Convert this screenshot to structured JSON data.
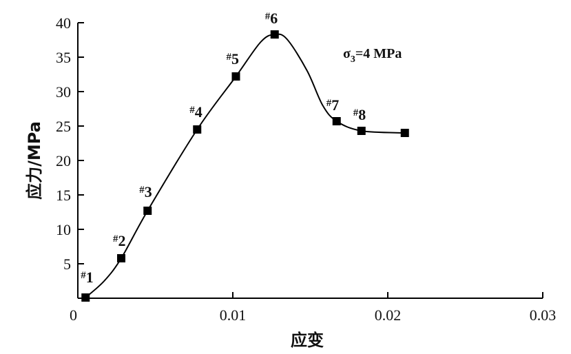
{
  "chart_data": {
    "type": "line",
    "title": "",
    "xlabel": "应变",
    "ylabel": "应力/MPa",
    "xlim": [
      0,
      0.03
    ],
    "ylim": [
      0,
      40
    ],
    "x_ticks": [
      0,
      0.01,
      0.02,
      0.03
    ],
    "x_tick_labels": [
      "0",
      "0.01",
      "0.02",
      "0.03"
    ],
    "y_ticks": [
      5,
      10,
      15,
      20,
      25,
      30,
      35,
      40
    ],
    "y_tick_labels": [
      "5",
      "10",
      "15",
      "20",
      "25",
      "30",
      "35",
      "40"
    ],
    "grid": false,
    "annotation": {
      "prefix": "σ",
      "subscript": "3",
      "suffix": "=4 MPa"
    },
    "series": [
      {
        "marker": "square",
        "color": "#000000",
        "points": [
          {
            "label": "1",
            "x": 0.0005,
            "y": 0.1
          },
          {
            "label": "2",
            "x": 0.0028,
            "y": 5.8
          },
          {
            "label": "3",
            "x": 0.0045,
            "y": 12.7
          },
          {
            "label": "4",
            "x": 0.0077,
            "y": 24.5
          },
          {
            "label": "5",
            "x": 0.0102,
            "y": 32.2
          },
          {
            "label": "6",
            "x": 0.0127,
            "y": 38.3
          },
          {
            "label": "7",
            "x": 0.0167,
            "y": 25.7
          },
          {
            "label": "8",
            "x": 0.0183,
            "y": 24.3
          },
          {
            "label": "",
            "x": 0.0211,
            "y": 24.0
          }
        ],
        "curve": [
          {
            "x": 0.0005,
            "y": 0.1
          },
          {
            "x": 0.0017,
            "y": 2.5
          },
          {
            "x": 0.0028,
            "y": 5.8
          },
          {
            "x": 0.0045,
            "y": 12.7
          },
          {
            "x": 0.0077,
            "y": 24.5
          },
          {
            "x": 0.0102,
            "y": 32.2
          },
          {
            "x": 0.0118,
            "y": 37.2
          },
          {
            "x": 0.0127,
            "y": 38.3
          },
          {
            "x": 0.0135,
            "y": 37.6
          },
          {
            "x": 0.0148,
            "y": 33.0
          },
          {
            "x": 0.0158,
            "y": 28.0
          },
          {
            "x": 0.0167,
            "y": 25.7
          },
          {
            "x": 0.0183,
            "y": 24.3
          },
          {
            "x": 0.0211,
            "y": 24.0
          }
        ]
      }
    ]
  }
}
